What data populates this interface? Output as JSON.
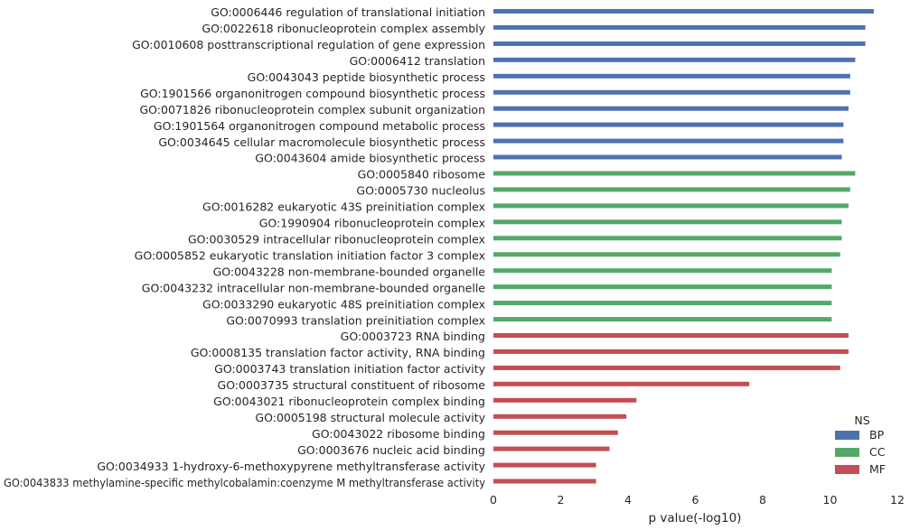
{
  "chart_data": {
    "type": "bar",
    "orientation": "horizontal",
    "xlabel": "p value(-log10)",
    "ylabel": "",
    "xlim": [
      0,
      12
    ],
    "xticks": [
      "0",
      "2",
      "4",
      "6",
      "8",
      "10",
      "12"
    ],
    "grid": false,
    "legend": {
      "title": "NS",
      "placement": "bottom-right",
      "entries": [
        {
          "name": "BP",
          "color": "#4C72B0"
        },
        {
          "name": "CC",
          "color": "#55A868"
        },
        {
          "name": "MF",
          "color": "#C44E52"
        }
      ]
    },
    "categories": [
      {
        "label": "GO:0006446 regulation of translational initiation",
        "value": 11.3,
        "group": "BP"
      },
      {
        "label": "GO:0022618 ribonucleoprotein complex assembly",
        "value": 11.05,
        "group": "BP"
      },
      {
        "label": "GO:0010608 posttranscriptional regulation of gene expression",
        "value": 11.05,
        "group": "BP"
      },
      {
        "label": "GO:0006412 translation",
        "value": 10.75,
        "group": "BP"
      },
      {
        "label": "GO:0043043 peptide biosynthetic process",
        "value": 10.6,
        "group": "BP"
      },
      {
        "label": "GO:1901566 organonitrogen compound biosynthetic process",
        "value": 10.6,
        "group": "BP"
      },
      {
        "label": "GO:0071826 ribonucleoprotein complex subunit organization",
        "value": 10.55,
        "group": "BP"
      },
      {
        "label": "GO:1901564 organonitrogen compound metabolic process",
        "value": 10.4,
        "group": "BP"
      },
      {
        "label": "GO:0034645 cellular macromolecule biosynthetic process",
        "value": 10.4,
        "group": "BP"
      },
      {
        "label": "GO:0043604 amide biosynthetic process",
        "value": 10.35,
        "group": "BP"
      },
      {
        "label": "GO:0005840 ribosome",
        "value": 10.75,
        "group": "CC"
      },
      {
        "label": "GO:0005730 nucleolus",
        "value": 10.6,
        "group": "CC"
      },
      {
        "label": "GO:0016282 eukaryotic 43S preinitiation complex",
        "value": 10.55,
        "group": "CC"
      },
      {
        "label": "GO:1990904 ribonucleoprotein complex",
        "value": 10.35,
        "group": "CC"
      },
      {
        "label": "GO:0030529 intracellular ribonucleoprotein complex",
        "value": 10.35,
        "group": "CC"
      },
      {
        "label": "GO:0005852 eukaryotic translation initiation factor 3 complex",
        "value": 10.3,
        "group": "CC"
      },
      {
        "label": "GO:0043228 non-membrane-bounded organelle",
        "value": 10.05,
        "group": "CC"
      },
      {
        "label": "GO:0043232 intracellular non-membrane-bounded organelle",
        "value": 10.05,
        "group": "CC"
      },
      {
        "label": "GO:0033290 eukaryotic 48S preinitiation complex",
        "value": 10.05,
        "group": "CC"
      },
      {
        "label": "GO:0070993 translation preinitiation complex",
        "value": 10.05,
        "group": "CC"
      },
      {
        "label": "GO:0003723 RNA binding",
        "value": 10.55,
        "group": "MF"
      },
      {
        "label": "GO:0008135 translation factor activity, RNA binding",
        "value": 10.55,
        "group": "MF"
      },
      {
        "label": "GO:0003743 translation initiation factor activity",
        "value": 10.3,
        "group": "MF"
      },
      {
        "label": "GO:0003735 structural constituent of ribosome",
        "value": 7.6,
        "group": "MF"
      },
      {
        "label": "GO:0043021 ribonucleoprotein complex binding",
        "value": 4.25,
        "group": "MF"
      },
      {
        "label": "GO:0005198 structural molecule activity",
        "value": 3.95,
        "group": "MF"
      },
      {
        "label": "GO:0043022 ribosome binding",
        "value": 3.7,
        "group": "MF"
      },
      {
        "label": "GO:0003676 nucleic acid binding",
        "value": 3.45,
        "group": "MF"
      },
      {
        "label": "GO:0034933 1-hydroxy-6-methoxypyrene methyltransferase activity",
        "value": 3.05,
        "group": "MF"
      },
      {
        "label": "GO:0043833 methylamine-specific methylcobalamin:coenzyme M methyltransferase activity",
        "value": 3.05,
        "group": "MF"
      }
    ]
  }
}
